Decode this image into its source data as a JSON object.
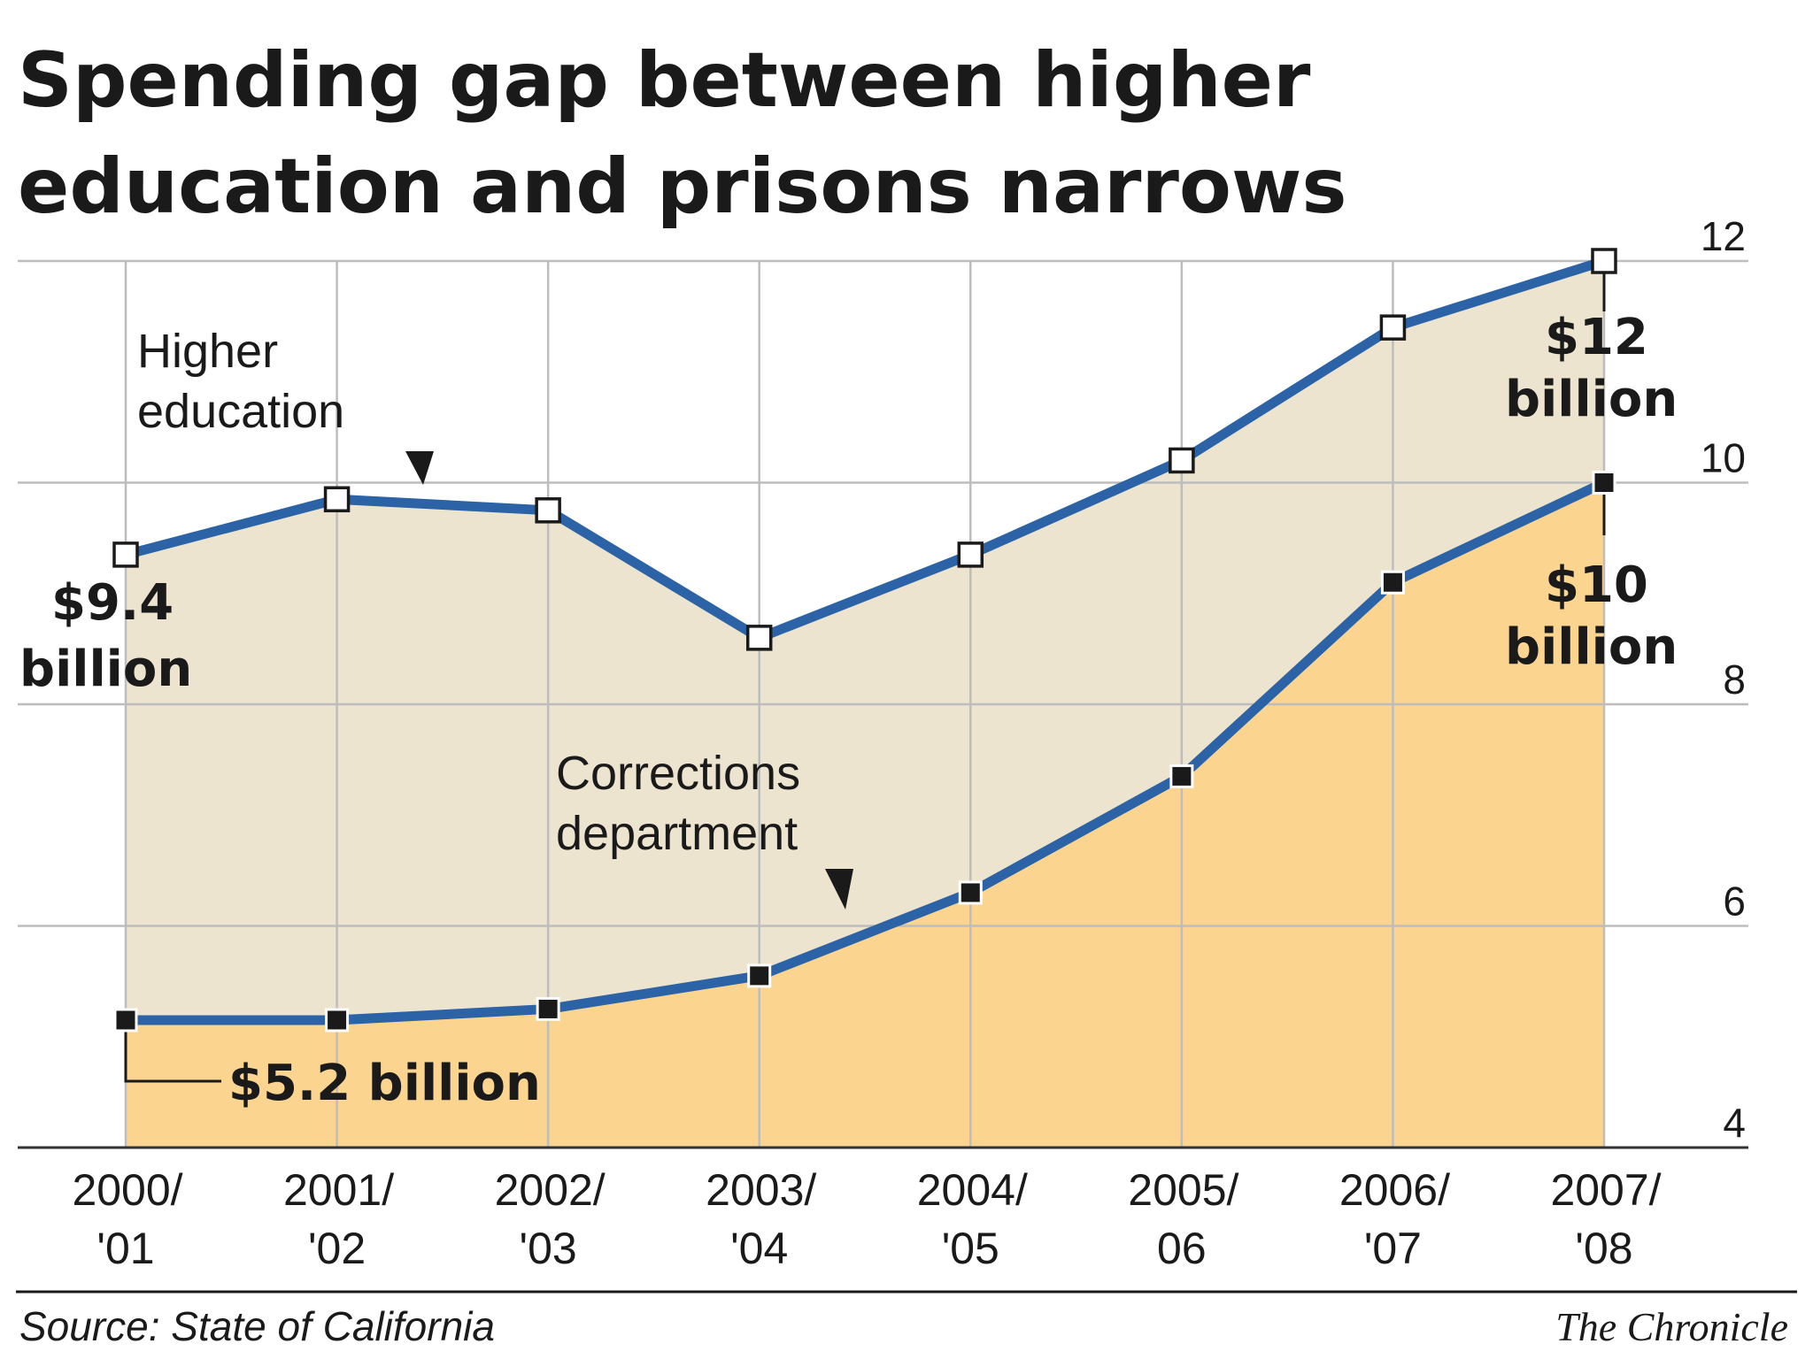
{
  "colors": {
    "line": "#2b63a6",
    "upper_fill": "#ece4cf",
    "lower_fill": "#fbd58f",
    "grid": "#bdbdbd",
    "text": "#1a1a1a"
  },
  "chart_data": {
    "type": "area",
    "title_lines": [
      "Spending gap between higher",
      "education and prisons narrows"
    ],
    "categories": [
      [
        "2000/",
        "'01"
      ],
      [
        "2001/",
        "'02"
      ],
      [
        "2002/",
        "'03"
      ],
      [
        "2003/",
        "'04"
      ],
      [
        "2004/",
        "'05"
      ],
      [
        "2005/",
        "06"
      ],
      [
        "2006/",
        "'07"
      ],
      [
        "2007/",
        "'08"
      ]
    ],
    "ylim": [
      4,
      12
    ],
    "yticks": [
      "4",
      "6",
      "8",
      "10",
      "12"
    ],
    "grid": true,
    "series": [
      {
        "name": "Higher education",
        "name_lines": [
          "Higher",
          "education"
        ],
        "values": [
          9.35,
          9.85,
          9.75,
          8.6,
          9.35,
          10.2,
          11.4,
          12.0
        ]
      },
      {
        "name": "Corrections department",
        "name_lines": [
          "Corrections",
          "department"
        ],
        "values": [
          5.15,
          5.15,
          5.25,
          5.55,
          6.3,
          7.35,
          9.1,
          10.0
        ]
      }
    ],
    "annotations": {
      "higher_start": [
        "$9.4",
        "billion"
      ],
      "higher_end": [
        "$12",
        "billion"
      ],
      "corr_start": "$5.2 billion",
      "corr_end": [
        "$10",
        "billion"
      ]
    },
    "source": "Source: State of California",
    "credit": "The Chronicle"
  }
}
